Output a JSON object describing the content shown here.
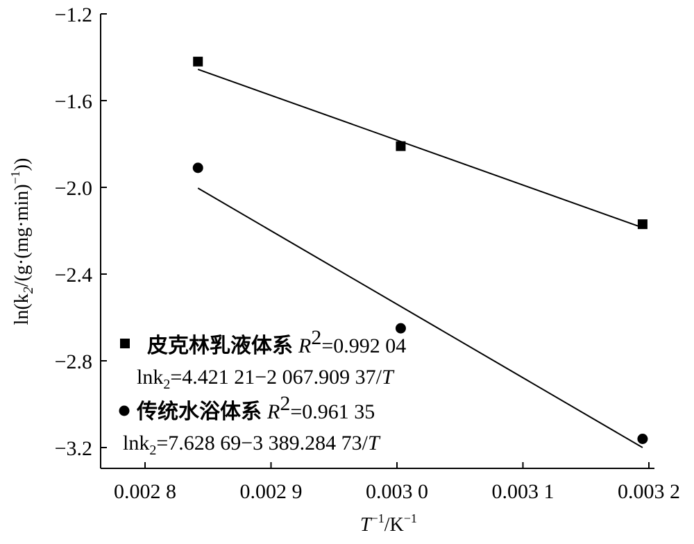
{
  "chart_data": {
    "type": "scatter",
    "xlabel": {
      "base": "T",
      "sup": "−1",
      "unit": "/K",
      "unit_sup": "−1"
    },
    "ylabel": {
      "prefix": "ln(k",
      "sub": "2",
      "mid": "/(g·(mg·min)",
      "sup": "−1",
      "suffix": "))"
    },
    "xlim": [
      0.00278,
      0.00321
    ],
    "ylim": [
      -3.3,
      -1.2
    ],
    "x_ticks": [
      {
        "value": 0.0028,
        "label": "0.002 8"
      },
      {
        "value": 0.0029,
        "label": "0.002 9"
      },
      {
        "value": 0.003,
        "label": "0.003 0"
      },
      {
        "value": 0.0031,
        "label": "0.003 1"
      },
      {
        "value": 0.0032,
        "label": "0.003 2"
      }
    ],
    "y_ticks": [
      {
        "value": -1.2,
        "label": "−1.2"
      },
      {
        "value": -1.6,
        "label": "−1.6"
      },
      {
        "value": -2.0,
        "label": "−2.0"
      },
      {
        "value": -2.4,
        "label": "−2.4"
      },
      {
        "value": -2.8,
        "label": "−2.8"
      },
      {
        "value": -3.2,
        "label": "−3.2"
      }
    ],
    "series": [
      {
        "name": "皮克林乳液体系",
        "marker": "square",
        "x": [
          0.002842,
          0.003003,
          0.003195
        ],
        "y": [
          -1.42,
          -1.81,
          -2.17
        ],
        "r2_label": "R",
        "r2_sup": "2",
        "r2_value": "=0.992 04",
        "eq_prefix": "lnk",
        "eq_sub": "2",
        "eq_body": "=4.421 21−2 067.909 37/",
        "eq_var": "T",
        "fit": {
          "intercept": 4.42121,
          "slope": -2067.90937
        }
      },
      {
        "name": "传统水浴体系",
        "marker": "circle",
        "x": [
          0.002842,
          0.003003,
          0.003195
        ],
        "y": [
          -1.91,
          -2.65,
          -3.16
        ],
        "r2_label": "R",
        "r2_sup": "2",
        "r2_value": "=0.961 35",
        "eq_prefix": "lnk",
        "eq_sub": "2",
        "eq_body": "=7.628 69−3 389.284 73/",
        "eq_var": "T",
        "fit": {
          "intercept": 7.62869,
          "slope": -3389.28473
        }
      }
    ],
    "legend_position": "bottom-left",
    "grid": false
  }
}
